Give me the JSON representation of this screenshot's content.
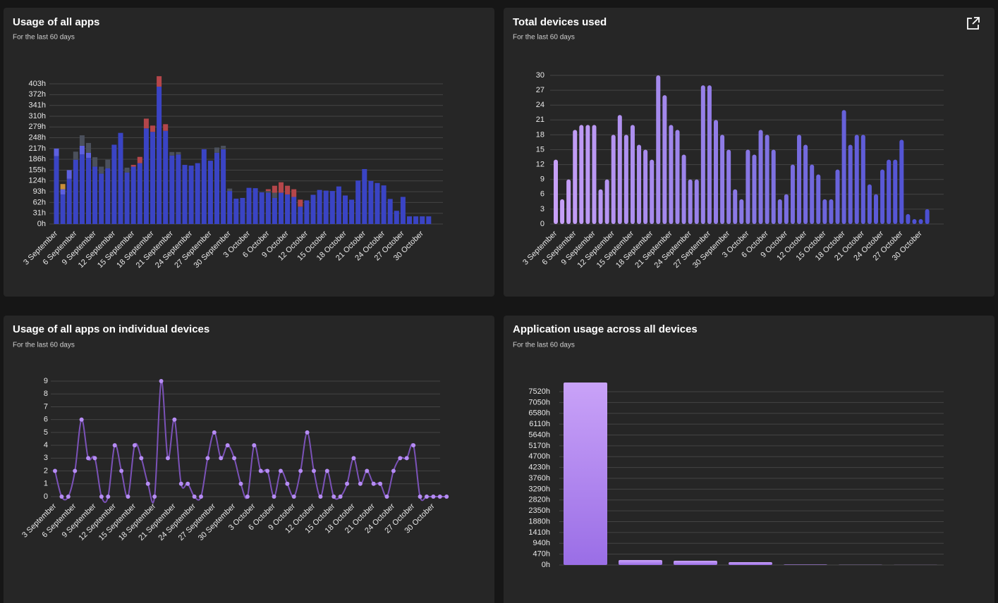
{
  "chart_data": [
    {
      "type": "stacked-bar",
      "title": "Usage of all apps",
      "subtitle": "For the last 60 days",
      "categories": [
        "3 September",
        null,
        null,
        "6 September",
        null,
        null,
        "9 September",
        null,
        null,
        "12 September",
        null,
        null,
        "15 September",
        null,
        null,
        "18 September",
        null,
        null,
        "21 September",
        null,
        null,
        "24 September",
        null,
        null,
        "27 September",
        null,
        null,
        "30 September",
        null,
        null,
        "3 October",
        null,
        null,
        "6 October",
        null,
        null,
        "9 October",
        null,
        null,
        "12 October",
        null,
        null,
        "15 October",
        null,
        null,
        "18 October",
        null,
        null,
        "21 October",
        null,
        null,
        "24 October",
        null,
        null,
        "27 October",
        null,
        null,
        "30 October",
        null
      ],
      "series": [
        {
          "color": "#3a44c4",
          "values": [
            195,
            85,
            130,
            185,
            200,
            190,
            165,
            145,
            160,
            228,
            262,
            148,
            165,
            175,
            275,
            265,
            395,
            268,
            197,
            200,
            170,
            168,
            175,
            215,
            182,
            205,
            215,
            95,
            73,
            75,
            104,
            103,
            91,
            90,
            75,
            90,
            85,
            78,
            50,
            68,
            84,
            98,
            96,
            95,
            108,
            82,
            70,
            125,
            158,
            124,
            118,
            111,
            72,
            38,
            78,
            22,
            22,
            22,
            22
          ]
        },
        {
          "color": "#5d60e0",
          "values": [
            22,
            15,
            25,
            0,
            25,
            15,
            0,
            0,
            0,
            0,
            0,
            0,
            0,
            0,
            0,
            0,
            0,
            0,
            0,
            0,
            0,
            0,
            0,
            0,
            0,
            0,
            0,
            0,
            0,
            0,
            0,
            0,
            0,
            0,
            0,
            0,
            0,
            0,
            0,
            0,
            0,
            0,
            0,
            0,
            0,
            0,
            0,
            0,
            0,
            0,
            0,
            0,
            0,
            0,
            0,
            0,
            0,
            0,
            0
          ]
        },
        {
          "color": "#4b505c",
          "values": [
            0,
            0,
            0,
            23,
            30,
            28,
            27,
            20,
            25,
            0,
            0,
            14,
            0,
            0,
            0,
            0,
            0,
            0,
            10,
            7,
            0,
            0,
            0,
            0,
            0,
            15,
            10,
            7,
            0,
            0,
            0,
            0,
            0,
            5,
            15,
            0,
            0,
            0,
            0,
            0,
            0,
            0,
            0,
            0,
            0,
            0,
            0,
            0,
            0,
            0,
            0,
            0,
            0,
            0,
            0,
            0,
            0,
            0,
            0
          ]
        },
        {
          "color": "#b4464a",
          "values": [
            0,
            0,
            0,
            0,
            0,
            0,
            0,
            0,
            0,
            0,
            0,
            0,
            5,
            18,
            28,
            18,
            30,
            19,
            0,
            0,
            0,
            0,
            0,
            0,
            0,
            0,
            0,
            0,
            0,
            0,
            0,
            0,
            0,
            5,
            20,
            30,
            25,
            22,
            20,
            0,
            0,
            0,
            0,
            0,
            0,
            0,
            0,
            0,
            0,
            0,
            0,
            0,
            0,
            0,
            0,
            0,
            0,
            0,
            0
          ]
        },
        {
          "color": "#c98f3a",
          "values": [
            0,
            15,
            0,
            0,
            0,
            0,
            0,
            0,
            0,
            0,
            0,
            0,
            0,
            0,
            0,
            0,
            0,
            0,
            0,
            0,
            0,
            0,
            0,
            0,
            0,
            0,
            0,
            0,
            0,
            0,
            0,
            0,
            0,
            0,
            0,
            0,
            0,
            0,
            0,
            0,
            0,
            0,
            0,
            0,
            0,
            0,
            0,
            0,
            0,
            0,
            0,
            0,
            0,
            0,
            0,
            0,
            0,
            0,
            0
          ]
        }
      ],
      "ylim": [
        0,
        430
      ],
      "yticks": [
        {
          "value": 0,
          "label": "0h"
        },
        {
          "value": 31,
          "label": "31h"
        },
        {
          "value": 62,
          "label": "62h"
        },
        {
          "value": 93,
          "label": "93h"
        },
        {
          "value": 124,
          "label": "124h"
        },
        {
          "value": 155,
          "label": "155h"
        },
        {
          "value": 186,
          "label": "186h"
        },
        {
          "value": 217,
          "label": "217h"
        },
        {
          "value": 248,
          "label": "248h"
        },
        {
          "value": 279,
          "label": "279h"
        },
        {
          "value": 310,
          "label": "310h"
        },
        {
          "value": 341,
          "label": "341h"
        },
        {
          "value": 372,
          "label": "372h"
        },
        {
          "value": 403,
          "label": "403h"
        }
      ],
      "grid": true
    },
    {
      "type": "bar",
      "title": "Total devices used",
      "subtitle": "For the last 60 days",
      "categories": [
        "3 September",
        null,
        null,
        "6 September",
        null,
        null,
        "9 September",
        null,
        null,
        "12 September",
        null,
        null,
        "15 September",
        null,
        null,
        "18 September",
        null,
        null,
        "21 September",
        null,
        null,
        "24 September",
        null,
        null,
        "27 September",
        null,
        null,
        "30 September",
        null,
        null,
        "3 October",
        null,
        null,
        "6 October",
        null,
        null,
        "9 October",
        null,
        null,
        "12 October",
        null,
        null,
        "15 October",
        null,
        null,
        "18 October",
        null,
        null,
        "21 October",
        null,
        null,
        "24 October",
        null,
        null,
        "27 October",
        null,
        null,
        "30 October",
        null
      ],
      "values": [
        13,
        5,
        9,
        19,
        20,
        20,
        20,
        7,
        9,
        18,
        22,
        18,
        20,
        16,
        15,
        13,
        30,
        26,
        20,
        19,
        14,
        9,
        9,
        28,
        28,
        21,
        18,
        15,
        7,
        5,
        15,
        14,
        19,
        18,
        15,
        5,
        6,
        12,
        18,
        16,
        12,
        10,
        5,
        5,
        11,
        23,
        16,
        18,
        18,
        8,
        6,
        11,
        13,
        13,
        17,
        2,
        1,
        1,
        3
      ],
      "gradient": [
        "#c7a0f7",
        "#4b4fd2"
      ],
      "ylim": [
        0,
        30
      ],
      "yticks": [
        0,
        3,
        6,
        9,
        12,
        15,
        18,
        21,
        24,
        27,
        30
      ],
      "grid": true
    },
    {
      "type": "line",
      "title": "Usage of all apps on individual devices",
      "subtitle": "For the last 60 days",
      "categories": [
        "3 September",
        null,
        null,
        "6 September",
        null,
        null,
        "9 September",
        null,
        null,
        "12 September",
        null,
        null,
        "15 September",
        null,
        null,
        "18 September",
        null,
        null,
        "21 September",
        null,
        null,
        "24 September",
        null,
        null,
        "27 September",
        null,
        null,
        "30 September",
        null,
        null,
        "3 October",
        null,
        null,
        "6 October",
        null,
        null,
        "9 October",
        null,
        null,
        "12 October",
        null,
        null,
        "15 October",
        null,
        null,
        "18 October",
        null,
        null,
        "21 October",
        null,
        null,
        "24 October",
        null,
        null,
        "27 October",
        null,
        null,
        "30 October",
        null,
        null
      ],
      "values": [
        2,
        0,
        0,
        2,
        6,
        3,
        3,
        0,
        0,
        4,
        2,
        0,
        4,
        3,
        1,
        0,
        9,
        3,
        6,
        1,
        1,
        0,
        0,
        3,
        5,
        3,
        4,
        3,
        1,
        0,
        4,
        2,
        2,
        0,
        2,
        1,
        0,
        2,
        5,
        2,
        0,
        2,
        0,
        0,
        1,
        3,
        1,
        2,
        1,
        1,
        0,
        2,
        3,
        3,
        4,
        0,
        0,
        0,
        0,
        0
      ],
      "color": "#7b52b8",
      "marker_color": "#b68cf5",
      "ylim": [
        0,
        9
      ],
      "yticks": [
        0,
        1,
        2,
        3,
        4,
        5,
        6,
        7,
        8,
        9
      ],
      "grid": true
    },
    {
      "type": "bar",
      "title": "Application usage across all devices",
      "subtitle": "For the last 60 days",
      "values": [
        7917,
        214,
        183,
        122,
        20,
        8,
        5
      ],
      "color": "#b48cf0",
      "ylim": [
        0,
        8000
      ],
      "yticks": [
        {
          "value": 0,
          "label": "0h"
        },
        {
          "value": 470,
          "label": "470h"
        },
        {
          "value": 940,
          "label": "940h"
        },
        {
          "value": 1410,
          "label": "1410h"
        },
        {
          "value": 1880,
          "label": "1880h"
        },
        {
          "value": 2350,
          "label": "2350h"
        },
        {
          "value": 2820,
          "label": "2820h"
        },
        {
          "value": 3290,
          "label": "3290h"
        },
        {
          "value": 3760,
          "label": "3760h"
        },
        {
          "value": 4230,
          "label": "4230h"
        },
        {
          "value": 4700,
          "label": "4700h"
        },
        {
          "value": 5170,
          "label": "5170h"
        },
        {
          "value": 5640,
          "label": "5640h"
        },
        {
          "value": 6110,
          "label": "6110h"
        },
        {
          "value": 6580,
          "label": "6580h"
        },
        {
          "value": 7050,
          "label": "7050h"
        },
        {
          "value": 7520,
          "label": "7520h"
        }
      ],
      "grid": true
    }
  ]
}
